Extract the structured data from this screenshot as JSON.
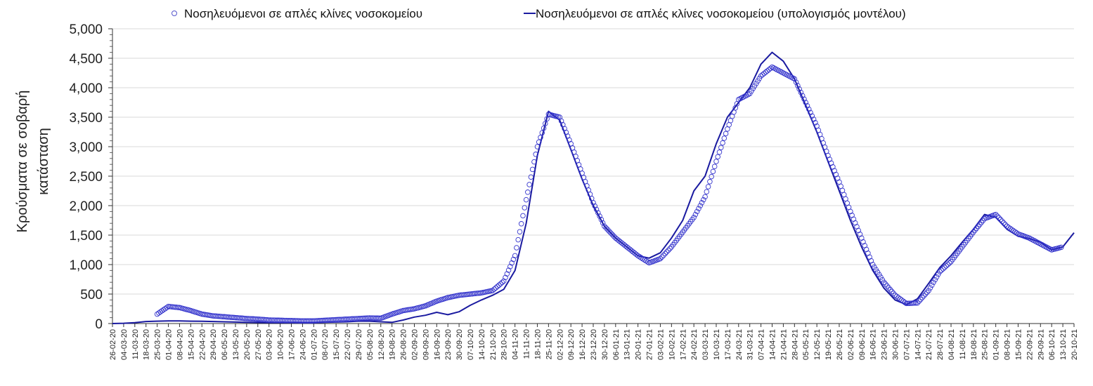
{
  "chart_data": {
    "type": "line",
    "title": "",
    "xlabel": "",
    "ylabel": "Κρούσματα σε σοβαρή κατάσταση",
    "ylabel_lines": [
      "Κρούσματα σε σοβαρή",
      "κατάσταση"
    ],
    "ylim": [
      0,
      5000
    ],
    "yticks": [
      0,
      500,
      1000,
      1500,
      2000,
      2500,
      3000,
      3500,
      4000,
      4500,
      5000
    ],
    "ytick_labels": [
      "0",
      "500",
      "1,000",
      "1,500",
      "2,000",
      "2,500",
      "3,000",
      "3,500",
      "4,000",
      "4,500",
      "5,000"
    ],
    "grid": true,
    "legend_position": "top",
    "categories": [
      "26-02-20",
      "04-03-20",
      "11-03-20",
      "18-03-20",
      "25-03-20",
      "01-04-20",
      "08-04-20",
      "15-04-20",
      "22-04-20",
      "29-04-20",
      "06-05-20",
      "13-05-20",
      "20-05-20",
      "27-05-20",
      "03-06-20",
      "10-06-20",
      "17-06-20",
      "24-06-20",
      "01-07-20",
      "08-07-20",
      "15-07-20",
      "22-07-20",
      "29-07-20",
      "05-08-20",
      "12-08-20",
      "19-08-20",
      "26-08-20",
      "02-09-20",
      "09-09-20",
      "16-09-20",
      "23-09-20",
      "30-09-20",
      "07-10-20",
      "14-10-20",
      "21-10-20",
      "28-10-20",
      "04-11-20",
      "11-11-20",
      "18-11-20",
      "25-11-20",
      "02-12-20",
      "09-12-20",
      "16-12-20",
      "23-12-20",
      "30-12-20",
      "06-01-21",
      "13-01-21",
      "20-01-21",
      "27-01-21",
      "03-02-21",
      "10-02-21",
      "17-02-21",
      "24-02-21",
      "03-03-21",
      "10-03-21",
      "17-03-21",
      "24-03-21",
      "31-03-21",
      "07-04-21",
      "14-04-21",
      "21-04-21",
      "28-04-21",
      "05-05-21",
      "12-05-21",
      "19-05-21",
      "26-05-21",
      "02-06-21",
      "09-06-21",
      "16-06-21",
      "23-06-21",
      "30-06-21",
      "07-07-21",
      "14-07-21",
      "21-07-21",
      "28-07-21",
      "04-08-21",
      "11-08-21",
      "18-08-21",
      "25-08-21",
      "01-09-21",
      "08-09-21",
      "15-09-21",
      "22-09-21",
      "29-09-21",
      "06-10-21",
      "13-10-21",
      "20-10-21"
    ],
    "series": [
      {
        "name": "Νοσηλευόμενοι σε απλές κλίνες νοσοκομείου",
        "kind": "scatter",
        "marker": "open-circle",
        "color": "#3333cc",
        "values": [
          null,
          null,
          null,
          null,
          160,
          290,
          270,
          220,
          160,
          130,
          115,
          100,
          85,
          75,
          60,
          55,
          50,
          45,
          45,
          55,
          65,
          75,
          85,
          95,
          90,
          160,
          220,
          250,
          300,
          380,
          440,
          480,
          500,
          520,
          560,
          720,
          1150,
          2100,
          3000,
          3550,
          3500,
          3050,
          2550,
          2050,
          1650,
          1450,
          1300,
          1150,
          1030,
          1100,
          1300,
          1550,
          1800,
          2150,
          2750,
          3300,
          3800,
          3900,
          4200,
          4350,
          4250,
          4150,
          3750,
          3350,
          2850,
          2400,
          1900,
          1450,
          1000,
          700,
          480,
          340,
          350,
          560,
          880,
          1050,
          1300,
          1550,
          1780,
          1850,
          1650,
          1520,
          1450,
          1350,
          1250,
          1300,
          null
        ],
        "start_index": 4
      },
      {
        "name": "Νοσηλευόμενοι σε απλές κλίνες νοσοκομείου (υπολογισμός μοντέλου)",
        "kind": "line",
        "color": "#1a1aa0",
        "values": [
          0,
          5,
          15,
          35,
          40,
          45,
          45,
          40,
          38,
          35,
          30,
          25,
          20,
          18,
          15,
          15,
          15,
          15,
          15,
          20,
          25,
          30,
          40,
          40,
          30,
          20,
          60,
          110,
          140,
          190,
          150,
          200,
          310,
          400,
          480,
          580,
          900,
          1700,
          2850,
          3600,
          3450,
          2950,
          2450,
          2000,
          1650,
          1450,
          1300,
          1150,
          1110,
          1200,
          1450,
          1750,
          2250,
          2500,
          3050,
          3500,
          3750,
          4000,
          4400,
          4600,
          4450,
          4150,
          3700,
          3250,
          2750,
          2250,
          1750,
          1300,
          900,
          600,
          400,
          320,
          420,
          680,
          950,
          1150,
          1380,
          1600,
          1850,
          1800,
          1600,
          1480,
          1440,
          1380,
          1250,
          1300,
          1540
        ]
      }
    ]
  },
  "legend": {
    "items": [
      {
        "label": "Νοσηλευόμενοι σε απλές κλίνες νοσοκομείου",
        "symbol": "circle"
      },
      {
        "label": "Νοσηλευόμενοι σε απλές κλίνες νοσοκομείου (υπολογισμός μοντέλου)",
        "symbol": "line"
      }
    ]
  },
  "colors": {
    "marker": "#3333cc",
    "line": "#1a1aa0",
    "grid": "#d9d9d9",
    "axis": "#333333"
  }
}
